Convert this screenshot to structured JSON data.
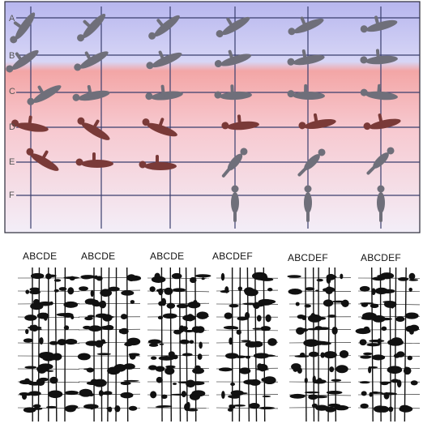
{
  "top_panel": {
    "row_labels": [
      "A",
      "B",
      "C",
      "D",
      "E",
      "F"
    ],
    "colors": {
      "upper_band": "#b7b6ee",
      "lower_band": "#f3a6a6",
      "upper_figure": "#6f6f7a",
      "lower_figure": "#7a3a38",
      "grid_line": "#3a3f6e"
    }
  },
  "bottom_panel": {
    "column_labels": [
      "ABCDE",
      "ABCDE",
      "ABCDE",
      "ABCDEF",
      "ABCDEF",
      "ABCDEF"
    ],
    "colors": {
      "trace": "#111111"
    }
  }
}
